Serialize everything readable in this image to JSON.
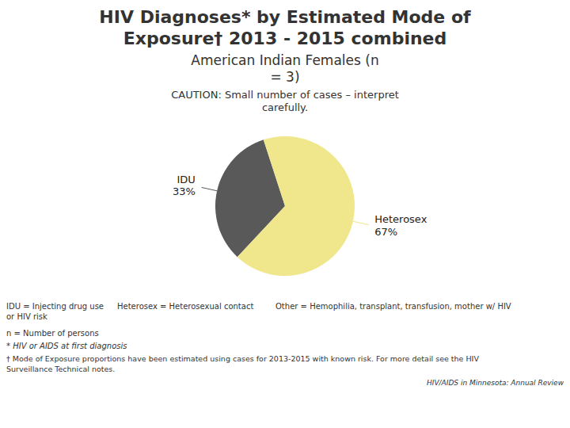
{
  "chart_data": {
    "type": "pie",
    "title": [
      "HIV Diagnoses* by Estimated Mode of",
      "Exposure† 2013 - 2015 combined"
    ],
    "subtitle": [
      "American Indian Females (n",
      "= 3)"
    ],
    "categories": [
      "IDU",
      "Heterosex"
    ],
    "values": [
      33,
      67
    ],
    "value_labels": [
      "33%",
      "67%"
    ],
    "colors": [
      "#595959",
      "#F0E68C"
    ],
    "data_labels": true,
    "annotations": [
      "CAUTION: Small number of cases – interpret\ncarefully.",
      "IDU = Injecting drug use\nor HIV risk",
      "Heterosex = Heterosexual contact",
      "Other = Hemophilia, transplant, transfusion, mother w/ HIV",
      "n = Number of persons",
      "* HIV or AIDS at first diagnosis",
      "† Mode of Exposure proportions have been estimated using cases for 2013-2015 with known risk. For more detail see the HIV\nSurveillance Technical notes.",
      "HIV/AIDS in Minnesota: Annual Review"
    ]
  }
}
